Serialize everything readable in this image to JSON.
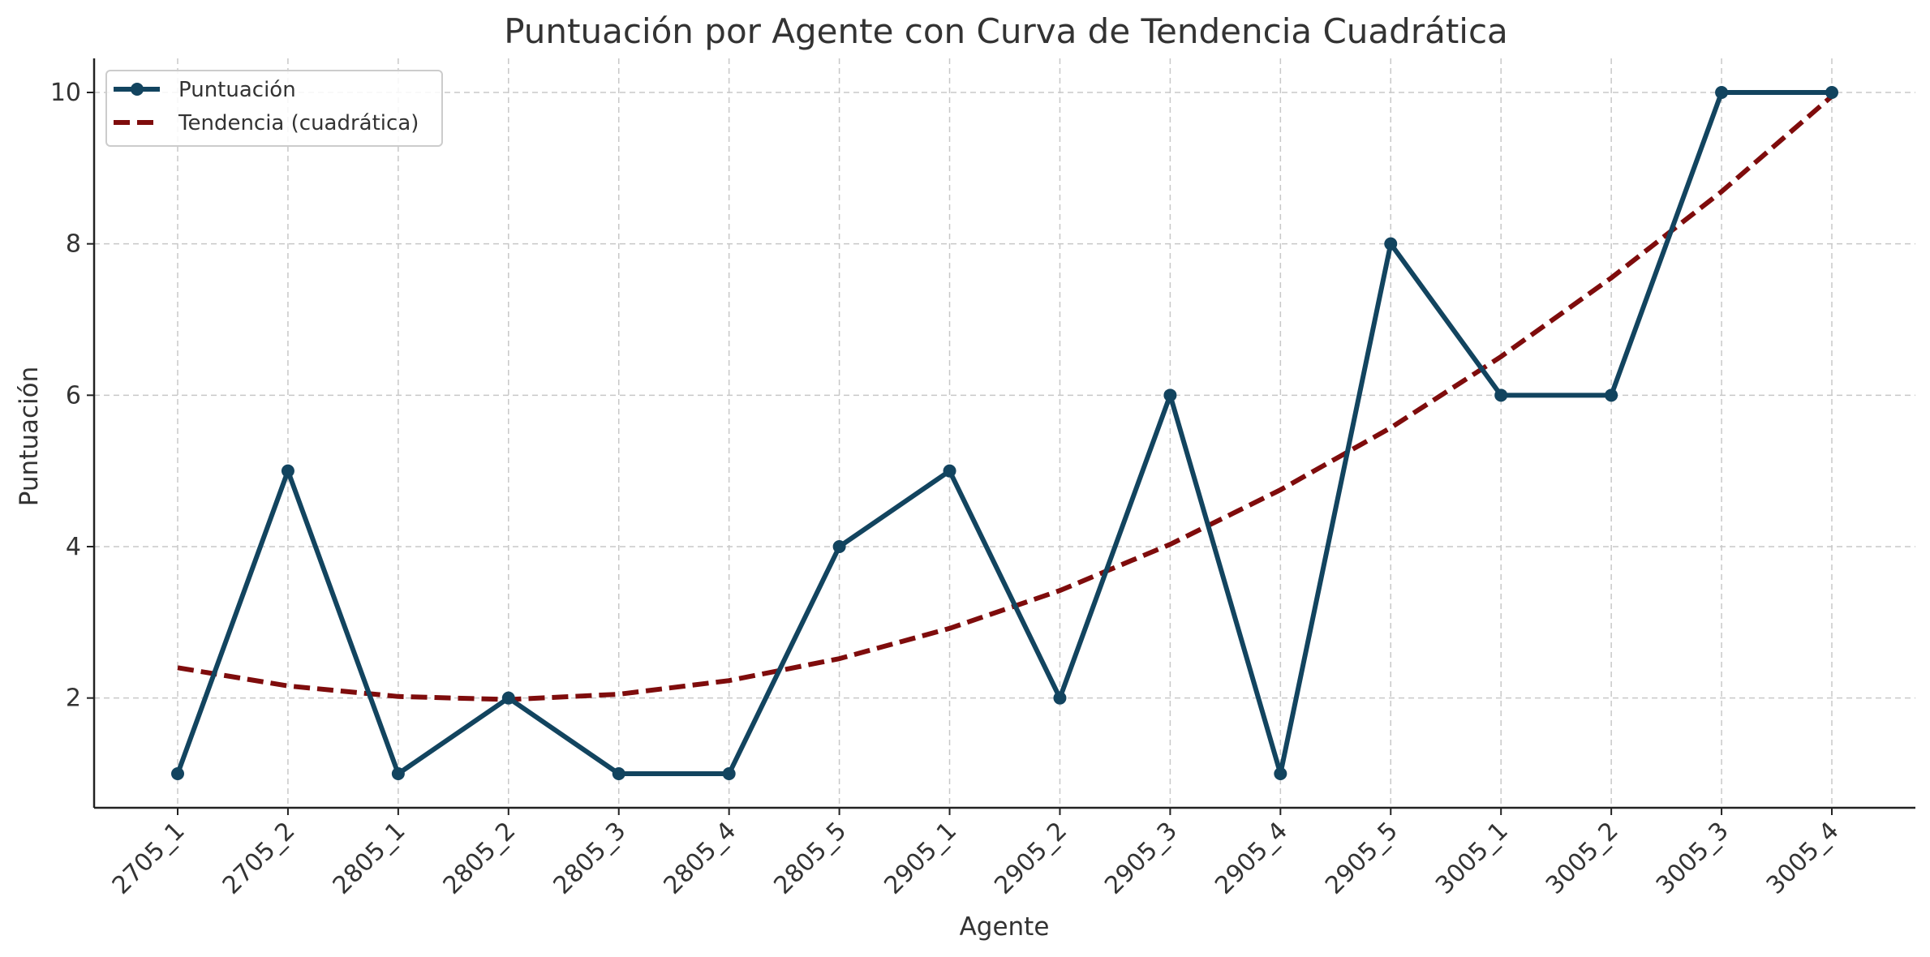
{
  "chart_data": {
    "type": "line",
    "title": "Puntuación por Agente con Curva de Tendencia Cuadrática",
    "xlabel": "Agente",
    "ylabel": "Puntuación",
    "categories": [
      "2705_1",
      "2705_2",
      "2805_1",
      "2805_2",
      "2805_3",
      "2805_4",
      "2805_5",
      "2905_1",
      "2905_2",
      "2905_3",
      "2905_4",
      "2905_5",
      "3005_1",
      "3005_2",
      "3005_3",
      "3005_4"
    ],
    "yticks": [
      "2",
      "4",
      "6",
      "8",
      "10"
    ],
    "ylim": [
      0.55,
      10.45
    ],
    "grid": true,
    "legend_position": "top-left",
    "series": [
      {
        "name": "Puntuación",
        "style": "solid-with-markers",
        "color": "#12445f",
        "values": [
          1,
          5,
          1,
          2,
          1,
          1,
          4,
          5,
          2,
          6,
          1,
          8,
          6,
          6,
          10,
          10
        ]
      },
      {
        "name": "Tendencia (cuadrática)",
        "style": "dashed",
        "color": "#7f0c0c",
        "values": [
          2.4,
          2.16,
          2.02,
          1.98,
          2.05,
          2.23,
          2.52,
          2.92,
          3.42,
          4.03,
          4.75,
          5.57,
          6.51,
          7.55,
          8.69,
          9.95
        ]
      }
    ]
  }
}
